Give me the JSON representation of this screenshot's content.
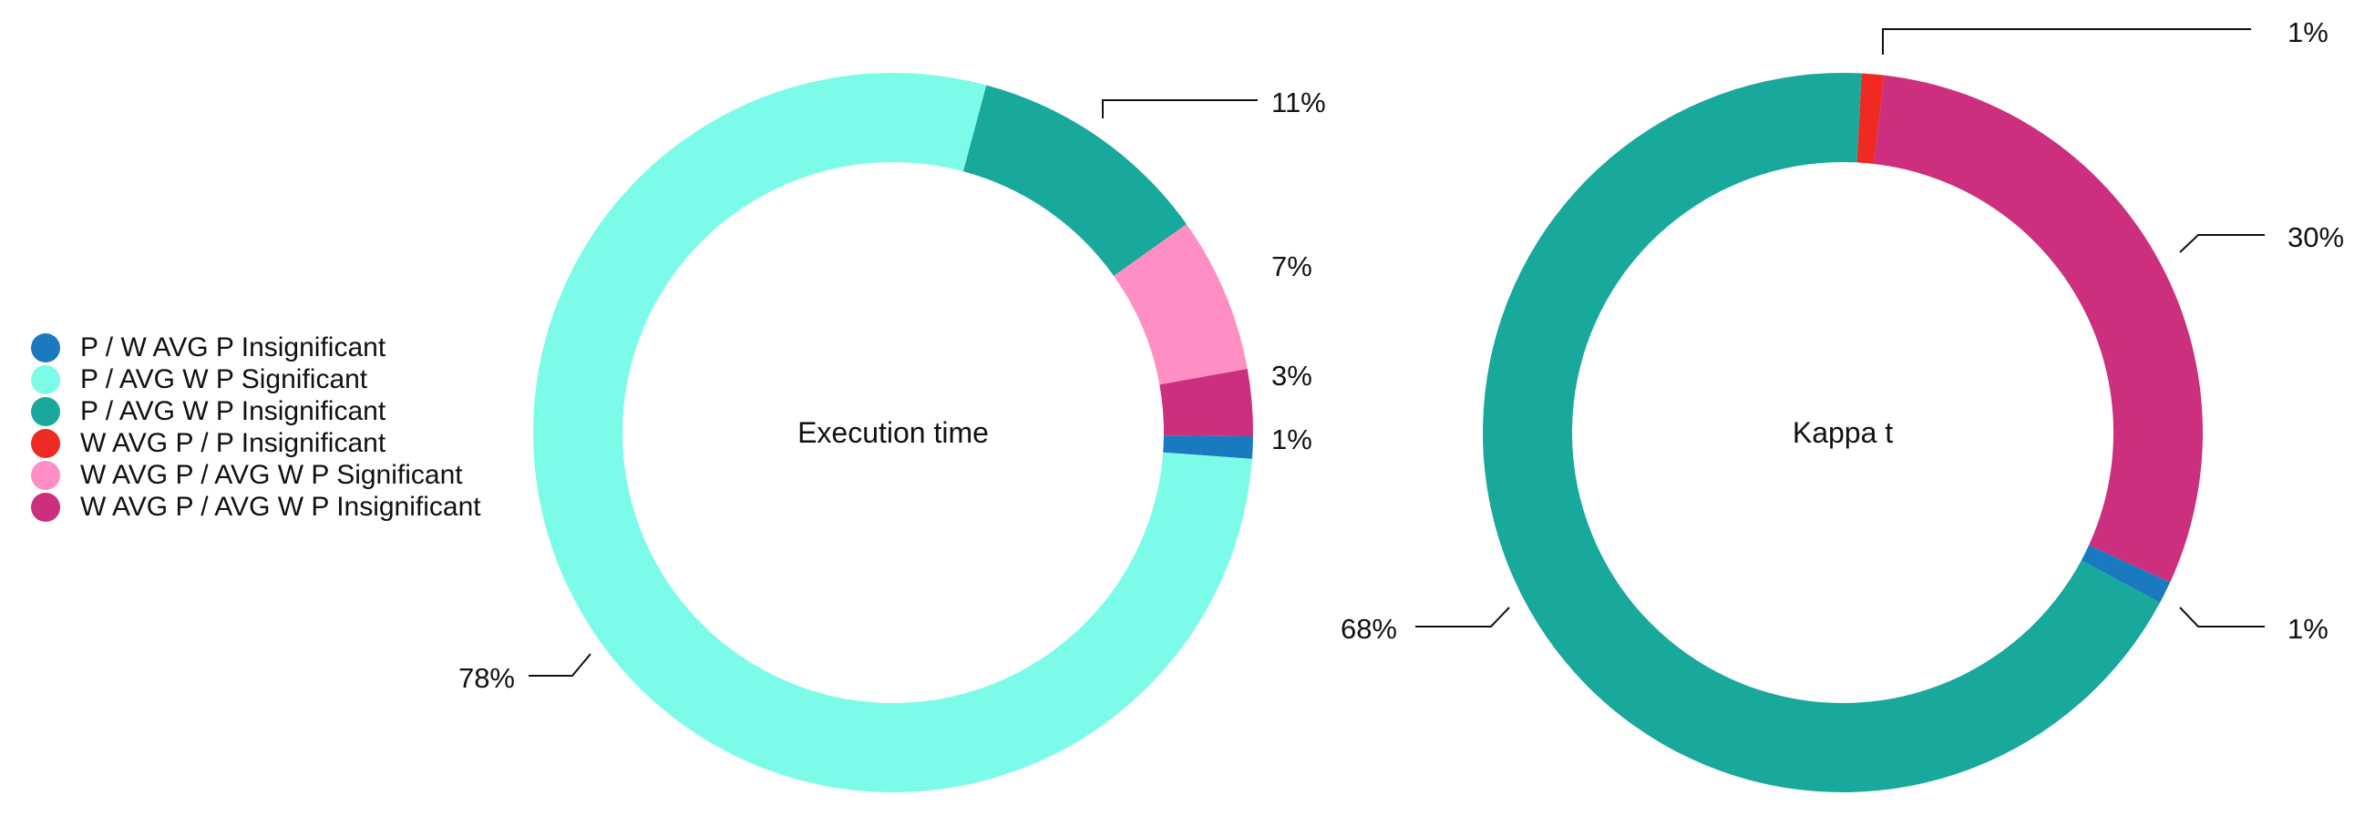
{
  "legend": {
    "items": [
      {
        "label": "P / W AVG P Insignificant",
        "color": "#1a7abf"
      },
      {
        "label": "P / AVG W P Significant",
        "color": "#7cfce8"
      },
      {
        "label": "P / AVG W P Insignificant",
        "color": "#19a89c"
      },
      {
        "label": "W AVG P / P Insignificant",
        "color": "#ee2a22"
      },
      {
        "label": "W AVG P / AVG W P Significant",
        "color": "#ff8ec4"
      },
      {
        "label": "W AVG P / AVG W P Insignificant",
        "color": "#cb2f7d"
      }
    ]
  },
  "chart_data": [
    {
      "type": "pie",
      "title": "Execution time",
      "donut": true,
      "slices": [
        {
          "label": "P / AVG W P Insignificant",
          "value": 11,
          "value_label": "11%"
        },
        {
          "label": "W AVG P / AVG W P Significant",
          "value": 7,
          "value_label": "7%"
        },
        {
          "label": "W AVG P / AVG W P Insignificant",
          "value": 3,
          "value_label": "3%"
        },
        {
          "label": "P / W AVG P Insignificant",
          "value": 1,
          "value_label": "1%"
        },
        {
          "label": "P / AVG W P Significant",
          "value": 78,
          "value_label": "78%"
        }
      ]
    },
    {
      "type": "pie",
      "title": "Kappa t",
      "donut": true,
      "slices": [
        {
          "label": "W AVG P / P Insignificant",
          "value": 1,
          "value_label": "1%"
        },
        {
          "label": "W AVG P / AVG W P Insignificant",
          "value": 30,
          "value_label": "30%"
        },
        {
          "label": "P / W AVG P Insignificant",
          "value": 1,
          "value_label": "1%"
        },
        {
          "label": "P / AVG W P Insignificant",
          "value": 68,
          "value_label": "68%"
        }
      ]
    }
  ]
}
